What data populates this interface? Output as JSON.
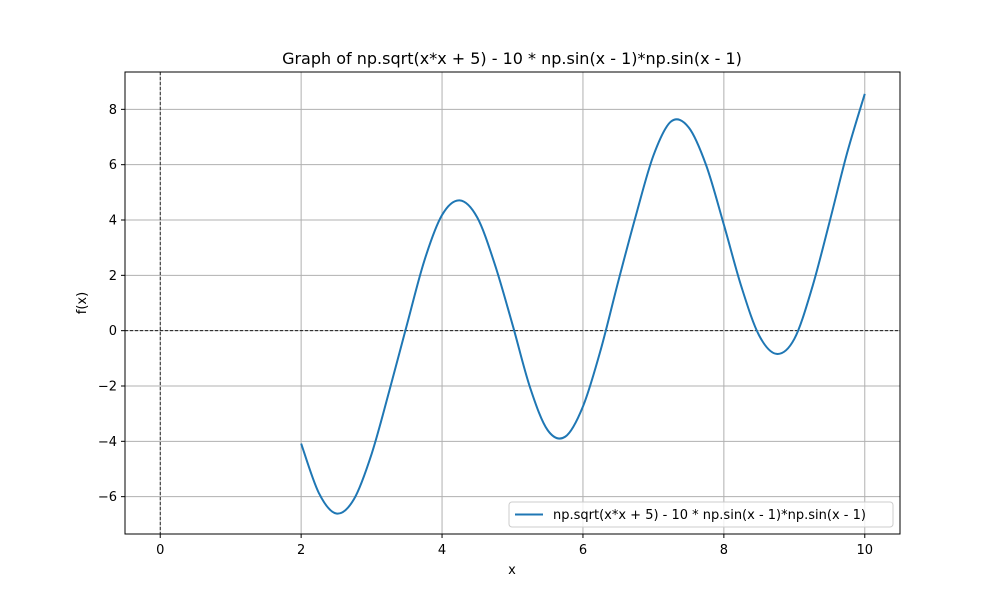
{
  "chart_data": {
    "type": "line",
    "title": "Graph of np.sqrt(x*x + 5) - 10 * np.sin(x - 1)*np.sin(x - 1)",
    "xlabel": "x",
    "ylabel": "f(x)",
    "xlim": [
      -0.5,
      10.5
    ],
    "ylim": [
      -7.35,
      9.35
    ],
    "x_ticks": [
      0,
      2,
      4,
      6,
      8,
      10
    ],
    "y_ticks": [
      -6,
      -4,
      -2,
      0,
      2,
      4,
      6,
      8
    ],
    "x_tick_labels": [
      "0",
      "2",
      "4",
      "6",
      "8",
      "10"
    ],
    "y_tick_labels": [
      "−6",
      "−4",
      "−2",
      "0",
      "2",
      "4",
      "6",
      "8"
    ],
    "grid": true,
    "legend_position": "lower-right",
    "reference_lines": {
      "horizontal_y": 0,
      "vertical_x": 0
    },
    "series": [
      {
        "name": "np.sqrt(x*x + 5) - 10 * np.sin(x - 1)*np.sin(x - 1)",
        "color": "#1f77b4",
        "x": [
          2.0,
          2.25,
          2.5,
          2.75,
          3.0,
          3.25,
          3.5,
          3.75,
          4.0,
          4.25,
          4.5,
          4.75,
          5.0,
          5.25,
          5.5,
          5.75,
          6.0,
          6.25,
          6.5,
          6.75,
          7.0,
          7.25,
          7.5,
          7.75,
          8.0,
          8.25,
          8.5,
          8.75,
          9.0,
          9.25,
          9.5,
          9.75,
          10.0
        ],
        "y": [
          -4.08,
          -5.86,
          -6.61,
          -6.09,
          -4.46,
          -2.19,
          0.2,
          2.54,
          4.18,
          4.71,
          4.09,
          2.39,
          0.22,
          -2.06,
          -3.6,
          -3.83,
          -2.74,
          -0.71,
          1.77,
          4.15,
          6.33,
          7.56,
          7.35,
          5.97,
          3.83,
          1.58,
          -0.17,
          -0.84,
          -0.3,
          1.53,
          3.93,
          6.43,
          8.56
        ]
      }
    ]
  }
}
